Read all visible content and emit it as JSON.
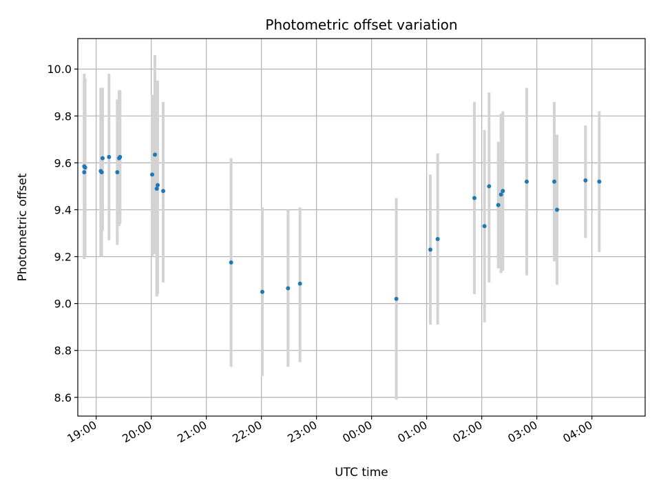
{
  "chart_data": {
    "type": "scatter",
    "title": "Photometric offset variation",
    "xlabel": "UTC time",
    "ylabel": "Photometric offset",
    "x_tick_labels": [
      "19:00",
      "20:00",
      "21:00",
      "22:00",
      "23:00",
      "00:00",
      "01:00",
      "02:00",
      "03:00",
      "04:00"
    ],
    "y_tick_labels": [
      "8.6",
      "8.8",
      "9.0",
      "9.2",
      "9.4",
      "9.6",
      "9.8",
      "10.0"
    ],
    "x_axis": {
      "start": "18:40",
      "end": "04:58"
    },
    "y_ticks": [
      8.6,
      8.8,
      9.0,
      9.2,
      9.4,
      9.6,
      9.8,
      10.0
    ],
    "ylim": [
      8.52,
      10.13
    ],
    "grid": true,
    "colors": {
      "points": "#1f77b4",
      "error_bars": "#d3d3d3"
    },
    "points": [
      {
        "t": "18:47",
        "y": 9.585,
        "lo": 9.19,
        "hi": 9.98
      },
      {
        "t": "18:47",
        "y": 9.56,
        "lo": 9.19,
        "hi": 9.95
      },
      {
        "t": "18:48",
        "y": 9.58,
        "lo": 9.2,
        "hi": 9.96
      },
      {
        "t": "19:05",
        "y": 9.565,
        "lo": 9.2,
        "hi": 9.92
      },
      {
        "t": "19:06",
        "y": 9.56,
        "lo": 9.2,
        "hi": 9.92
      },
      {
        "t": "19:07",
        "y": 9.62,
        "lo": 9.31,
        "hi": 9.92
      },
      {
        "t": "19:14",
        "y": 9.625,
        "lo": 9.27,
        "hi": 9.98
      },
      {
        "t": "19:23",
        "y": 9.56,
        "lo": 9.25,
        "hi": 9.87
      },
      {
        "t": "19:25",
        "y": 9.62,
        "lo": 9.33,
        "hi": 9.91
      },
      {
        "t": "19:26",
        "y": 9.625,
        "lo": 9.34,
        "hi": 9.91
      },
      {
        "t": "20:01",
        "y": 9.55,
        "lo": 9.2,
        "hi": 9.89
      },
      {
        "t": "20:04",
        "y": 9.635,
        "lo": 9.21,
        "hi": 10.06
      },
      {
        "t": "20:06",
        "y": 9.49,
        "lo": 9.03,
        "hi": 9.95
      },
      {
        "t": "20:07",
        "y": 9.505,
        "lo": 9.04,
        "hi": 9.95
      },
      {
        "t": "20:13",
        "y": 9.48,
        "lo": 9.09,
        "hi": 9.86
      },
      {
        "t": "21:27",
        "y": 9.175,
        "lo": 8.73,
        "hi": 9.62
      },
      {
        "t": "22:01",
        "y": 9.05,
        "lo": 8.69,
        "hi": 9.41
      },
      {
        "t": "22:29",
        "y": 9.065,
        "lo": 8.73,
        "hi": 9.4
      },
      {
        "t": "22:42",
        "y": 9.085,
        "lo": 8.75,
        "hi": 9.41
      },
      {
        "t": "00:27",
        "y": 9.02,
        "lo": 8.59,
        "hi": 9.45
      },
      {
        "t": "01:04",
        "y": 9.23,
        "lo": 8.91,
        "hi": 9.55
      },
      {
        "t": "01:12",
        "y": 9.275,
        "lo": 8.91,
        "hi": 9.64
      },
      {
        "t": "01:52",
        "y": 9.45,
        "lo": 9.04,
        "hi": 9.86
      },
      {
        "t": "02:03",
        "y": 9.33,
        "lo": 8.92,
        "hi": 9.74
      },
      {
        "t": "02:08",
        "y": 9.5,
        "lo": 9.09,
        "hi": 9.9
      },
      {
        "t": "02:18",
        "y": 9.42,
        "lo": 9.15,
        "hi": 9.69
      },
      {
        "t": "02:21",
        "y": 9.465,
        "lo": 9.13,
        "hi": 9.81
      },
      {
        "t": "02:23",
        "y": 9.48,
        "lo": 9.14,
        "hi": 9.82
      },
      {
        "t": "02:49",
        "y": 9.52,
        "lo": 9.12,
        "hi": 9.92
      },
      {
        "t": "03:19",
        "y": 9.52,
        "lo": 9.18,
        "hi": 9.86
      },
      {
        "t": "03:22",
        "y": 9.4,
        "lo": 9.08,
        "hi": 9.72
      },
      {
        "t": "03:53",
        "y": 9.525,
        "lo": 9.28,
        "hi": 9.76
      },
      {
        "t": "04:08",
        "y": 9.52,
        "lo": 9.22,
        "hi": 9.82
      }
    ]
  }
}
